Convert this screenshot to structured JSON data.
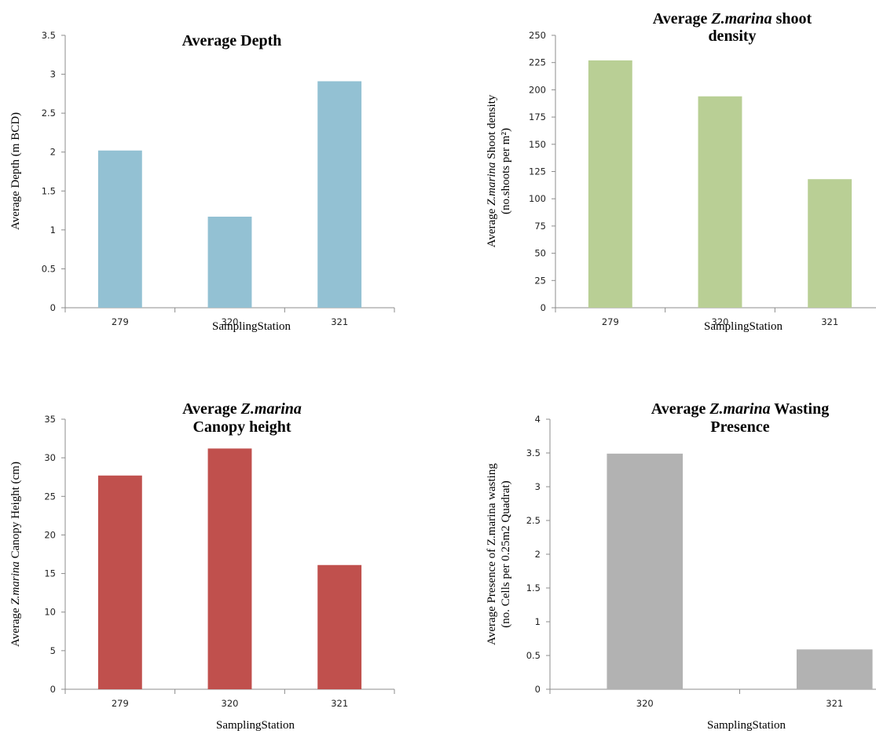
{
  "chart_data": [
    {
      "type": "bar",
      "title": "Average Depth",
      "title_segments": [
        {
          "text": "Average Depth",
          "italic": false
        }
      ],
      "xlabel": "SamplingStation",
      "ylabel": "Average Depth (m BCD)",
      "ylabel_segments": [
        {
          "text": "Average Depth (m BCD)",
          "italic": false
        }
      ],
      "categories": [
        "279",
        "320",
        "321"
      ],
      "values": [
        2.02,
        1.17,
        2.91
      ],
      "ylim": [
        0,
        3.5
      ],
      "yticks": [
        "0",
        "0.5",
        "1",
        "1.5",
        "2",
        "2.5",
        "3",
        "3.5"
      ],
      "bar_color": "#93c1d3",
      "grid": false,
      "legend": "none"
    },
    {
      "type": "bar",
      "title": "Average Z.marina shoot density",
      "title_segments": [
        {
          "text": "Average ",
          "italic": false
        },
        {
          "text": "Z.marina",
          "italic": true
        },
        {
          "text": " shoot",
          "italic": false
        },
        {
          "text": "density",
          "italic": false,
          "newline": true
        }
      ],
      "xlabel": "SamplingStation",
      "ylabel": "Average Z.marina Shoot density (no.shoots per m²)",
      "ylabel_segments": [
        {
          "text": "Average ",
          "italic": false
        },
        {
          "text": "Z.marina",
          "italic": true
        },
        {
          "text": " Shoot density",
          "italic": false
        },
        {
          "text": "(no.shoots per m²)",
          "italic": false,
          "newline": true
        }
      ],
      "categories": [
        "279",
        "320",
        "321"
      ],
      "values": [
        227,
        194,
        118
      ],
      "ylim": [
        0,
        250
      ],
      "yticks": [
        "0",
        "25",
        "50",
        "75",
        "100",
        "125",
        "150",
        "175",
        "200",
        "225",
        "250"
      ],
      "bar_color": "#b9cf95",
      "grid": false,
      "legend": "none"
    },
    {
      "type": "bar",
      "title": "Average Z.marina Canopy height",
      "title_segments": [
        {
          "text": "Average ",
          "italic": false
        },
        {
          "text": "Z.marina",
          "italic": true
        },
        {
          "text": "Canopy height",
          "italic": false,
          "newline": true
        }
      ],
      "xlabel": "SamplingStation",
      "ylabel": "Average Z.marina Canopy Height (cm)",
      "ylabel_segments": [
        {
          "text": "Average ",
          "italic": false
        },
        {
          "text": "Z.marina",
          "italic": true
        },
        {
          "text": " Canopy Height (cm)",
          "italic": false
        }
      ],
      "categories": [
        "279",
        "320",
        "321"
      ],
      "values": [
        27.7,
        31.2,
        16.1
      ],
      "ylim": [
        0,
        35
      ],
      "yticks": [
        "0",
        "5",
        "10",
        "15",
        "20",
        "25",
        "30",
        "35"
      ],
      "bar_color": "#c0504d",
      "grid": false,
      "legend": "none"
    },
    {
      "type": "bar",
      "title": "Average Z.marina Wasting Presence",
      "title_segments": [
        {
          "text": "Average ",
          "italic": false
        },
        {
          "text": "Z.marina",
          "italic": true
        },
        {
          "text": " Wasting",
          "italic": false
        },
        {
          "text": "Presence",
          "italic": false,
          "newline": true
        }
      ],
      "xlabel": "SamplingStation",
      "ylabel": "Average Presence of Z.marina wasting (no. Cells per 0.25m2 Quadrat)",
      "ylabel_segments": [
        {
          "text": "Average Presence of Z.marina wasting",
          "italic": false
        },
        {
          "text": "(no. Cells per 0.25m2 Quadrat)",
          "italic": false,
          "newline": true
        }
      ],
      "categories": [
        "320",
        "321"
      ],
      "values": [
        3.49,
        0.59
      ],
      "ylim": [
        0,
        4
      ],
      "yticks": [
        "0",
        "0.5",
        "1",
        "1.5",
        "2",
        "2.5",
        "3",
        "3.5",
        "4"
      ],
      "bar_color": "#b2b2b2",
      "grid": false,
      "legend": "none"
    }
  ]
}
